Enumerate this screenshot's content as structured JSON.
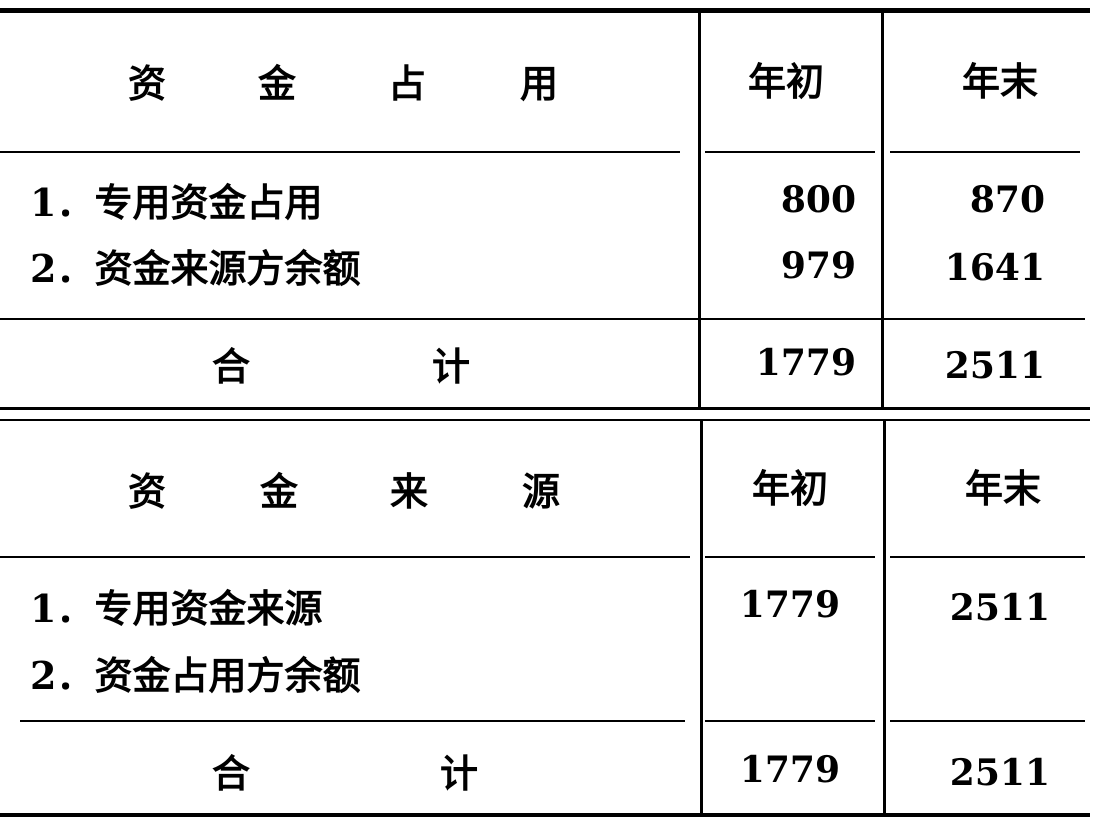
{
  "section_uses": {
    "header": {
      "label": [
        "资",
        "金",
        "占",
        "用"
      ],
      "col_begin": "年初",
      "col_end": "年末"
    },
    "rows": [
      {
        "label": "1．专用资金占用",
        "begin": "800",
        "end": "870"
      },
      {
        "label": "2．资金来源方余额",
        "begin": "979",
        "end": "1641"
      }
    ],
    "total": {
      "label": [
        "合",
        "计"
      ],
      "begin": "1779",
      "end": "2511"
    }
  },
  "section_sources": {
    "header": {
      "label": [
        "资",
        "金",
        "来",
        "源"
      ],
      "col_begin": "年初",
      "col_end": "年末"
    },
    "rows": [
      {
        "label": "1．专用资金来源",
        "begin": "1779",
        "end": "2511"
      },
      {
        "label": "2．资金占用方余额",
        "begin": "",
        "end": ""
      }
    ],
    "total": {
      "label": [
        "合",
        "计"
      ],
      "begin": "1779",
      "end": "2511"
    }
  }
}
